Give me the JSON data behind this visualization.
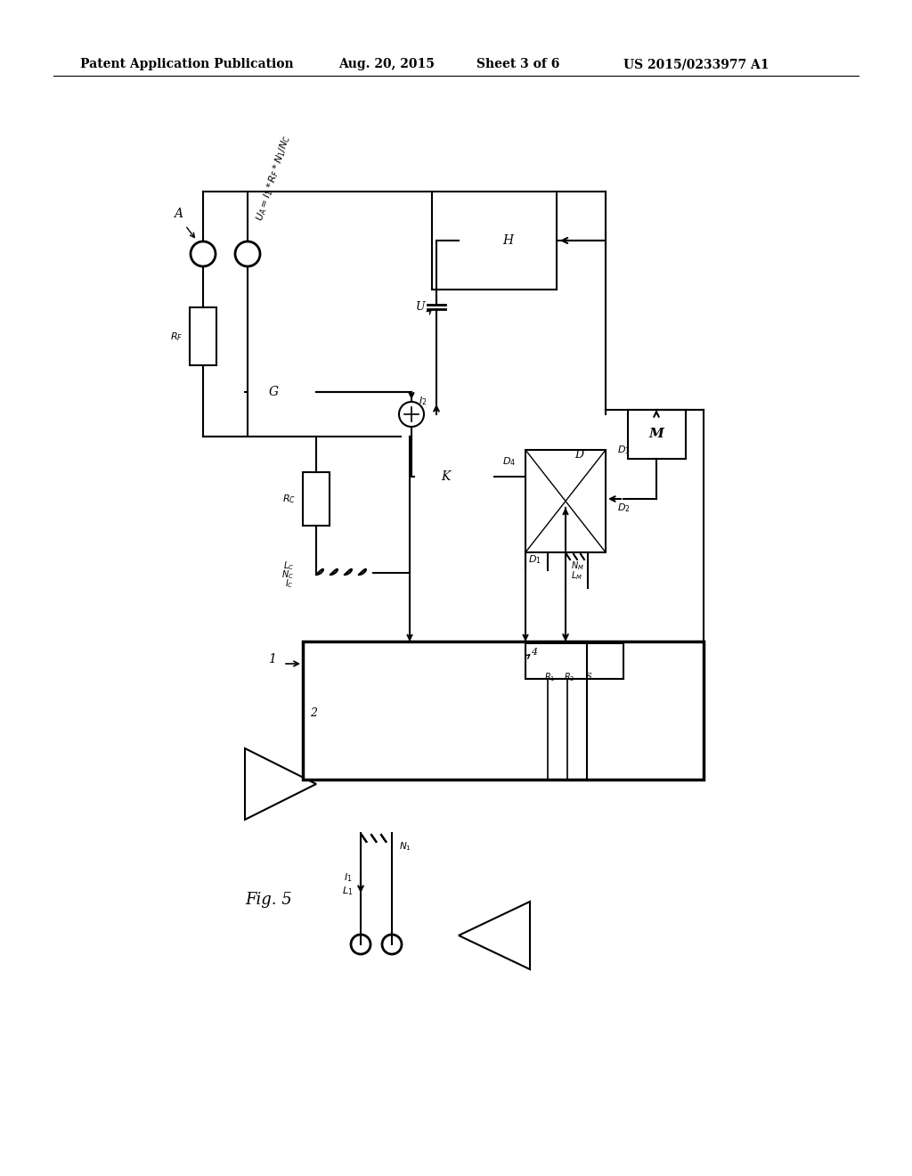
{
  "title": "Patent Application Publication",
  "date": "Aug. 20, 2015",
  "sheet": "Sheet 3 of 6",
  "patent_num": "US 2015/0233977 A1",
  "bg_color": "#ffffff",
  "line_color": "#000000",
  "header_fontsize": 10,
  "fig5_label": "Fig. 5"
}
